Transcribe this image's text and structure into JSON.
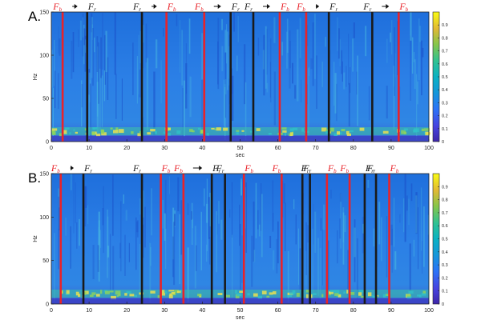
{
  "chart_data": [
    {
      "type": "heatmap",
      "panel_label": "A.",
      "xlabel": "sec",
      "ylabel": "Hz",
      "xlim": [
        0,
        100
      ],
      "ylim": [
        0,
        150
      ],
      "xticks": [
        "0",
        "10",
        "20",
        "30",
        "40",
        "50",
        "60",
        "70",
        "80",
        "90",
        "100"
      ],
      "yticks": [
        "0",
        "50",
        "100",
        "150"
      ],
      "colorbar": {
        "range": [
          0,
          1
        ],
        "ticks": [
          "0",
          "0.1",
          "0.2",
          "0.3",
          "0.4",
          "0.5",
          "0.6",
          "0.7",
          "0.8",
          "0.9"
        ]
      },
      "markers": [
        {
          "time": 3,
          "label": "F_b",
          "color": "red"
        },
        {
          "time": 9.5,
          "label": "F_r",
          "color": "black"
        },
        {
          "time": 24,
          "label": "F_r",
          "color": "black"
        },
        {
          "time": 30.5,
          "label": "F_b",
          "color": "red"
        },
        {
          "time": 40.5,
          "label": "F_b",
          "color": "red"
        },
        {
          "time": 47.5,
          "label": "F_r",
          "color": "black"
        },
        {
          "time": 53.5,
          "label": "F_r",
          "color": "black"
        },
        {
          "time": 60.5,
          "label": "F_b",
          "color": "red"
        },
        {
          "time": 67.5,
          "label": "F_b",
          "color": "red"
        },
        {
          "time": 73.5,
          "label": "F_r",
          "color": "black"
        },
        {
          "time": 85,
          "label": "F_r",
          "color": "black"
        },
        {
          "time": 92,
          "label": "F_b",
          "color": "red"
        }
      ]
    },
    {
      "type": "heatmap",
      "panel_label": "B.",
      "xlabel": "sec",
      "ylabel": "Hz",
      "xlim": [
        0,
        100
      ],
      "ylim": [
        0,
        150
      ],
      "xticks": [
        "0",
        "10",
        "20",
        "30",
        "40",
        "50",
        "60",
        "70",
        "80",
        "90",
        "100"
      ],
      "yticks": [
        "0",
        "50",
        "100",
        "150"
      ],
      "colorbar": {
        "range": [
          0,
          1
        ],
        "ticks": [
          "0",
          "0.1",
          "0.2",
          "0.3",
          "0.4",
          "0.5",
          "0.6",
          "0.7",
          "0.8",
          "0.9"
        ]
      },
      "markers": [
        {
          "time": 2.5,
          "label": "F_b",
          "color": "red"
        },
        {
          "time": 8.5,
          "label": "F_r",
          "color": "black"
        },
        {
          "time": 24,
          "label": "F_r",
          "color": "black"
        },
        {
          "time": 29,
          "label": "F_b",
          "color": "red"
        },
        {
          "time": 35,
          "label": "F_b",
          "color": "red"
        },
        {
          "time": 42.5,
          "label": "F_r",
          "color": "black"
        },
        {
          "time": 46,
          "label": "F_r",
          "color": "black"
        },
        {
          "time": 51,
          "label": "F_b",
          "color": "red"
        },
        {
          "time": 61,
          "label": "F_b",
          "color": "red"
        },
        {
          "time": 66.5,
          "label": "F_r",
          "color": "black"
        },
        {
          "time": 68.5,
          "label": "F_r",
          "color": "black"
        },
        {
          "time": 73,
          "label": "F_b",
          "color": "red"
        },
        {
          "time": 79,
          "label": "F_b",
          "color": "red"
        },
        {
          "time": 83,
          "label": "F_r",
          "color": "black"
        },
        {
          "time": 86,
          "label": "F_r",
          "color": "black"
        },
        {
          "time": 89.5,
          "label": "F_b",
          "color": "red"
        }
      ]
    }
  ]
}
